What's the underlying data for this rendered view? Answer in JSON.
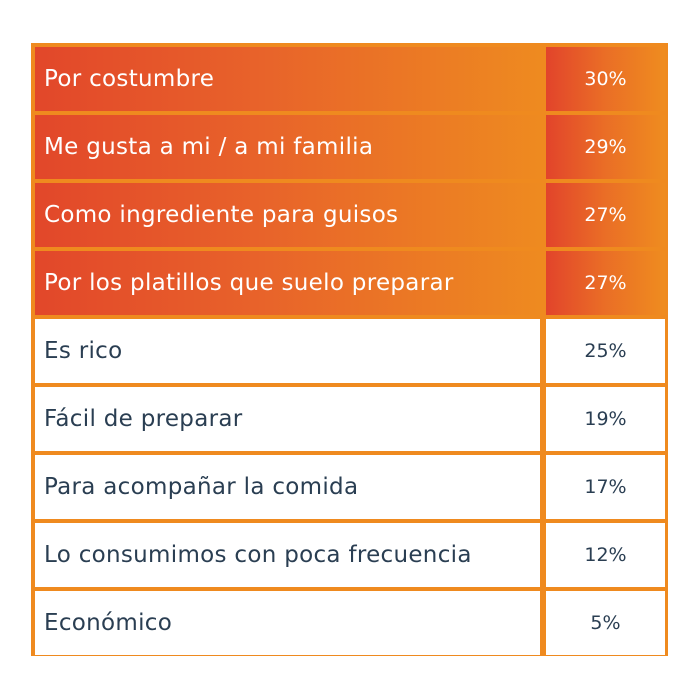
{
  "chart_data": {
    "type": "table",
    "rows": [
      {
        "label": "Por costumbre",
        "value": "30%",
        "highlight": true
      },
      {
        "label": "Me gusta a mi / a mi familia",
        "value": "29%",
        "highlight": true
      },
      {
        "label": "Como ingrediente para guisos",
        "value": "27%",
        "highlight": true
      },
      {
        "label": "Por los platillos que suelo preparar",
        "value": "27%",
        "highlight": true
      },
      {
        "label": "Es rico",
        "value": "25%",
        "highlight": false
      },
      {
        "label": "Fácil de preparar",
        "value": "19%",
        "highlight": false
      },
      {
        "label": "Para acompañar la comida",
        "value": "17%",
        "highlight": false
      },
      {
        "label": "Lo consumimos con poca frecuencia",
        "value": "12%",
        "highlight": false
      },
      {
        "label": "Económico",
        "value": "5%",
        "highlight": false
      }
    ],
    "colors": {
      "border": "#ef8a1f",
      "highlight_start": "#e2472a",
      "highlight_end": "#ee8a20",
      "text_plain": "#2a3e52",
      "text_highlight": "#ffffff"
    }
  }
}
